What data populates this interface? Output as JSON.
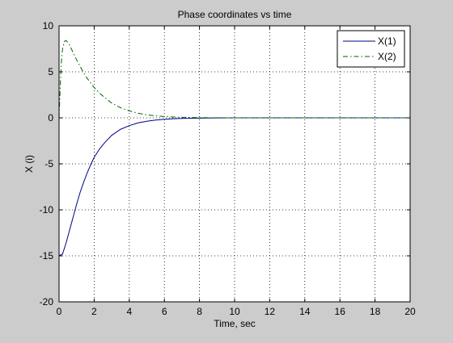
{
  "chart_data": {
    "type": "line",
    "title": "Phase coordinates vs time",
    "xlabel": "Time, sec",
    "ylabel": "X (i)",
    "xlim": [
      0,
      20
    ],
    "ylim": [
      -20,
      10
    ],
    "xticks": [
      0,
      2,
      4,
      6,
      8,
      10,
      12,
      14,
      16,
      18,
      20
    ],
    "yticks": [
      -20,
      -15,
      -10,
      -5,
      0,
      5,
      10
    ],
    "grid": true,
    "legend_position": "top-right",
    "series": [
      {
        "name": "X(1)",
        "color": "#00008b",
        "style": "solid",
        "x": [
          0,
          0.2,
          0.4,
          0.6,
          0.8,
          1.0,
          1.2,
          1.4,
          1.6,
          1.8,
          2.0,
          2.3,
          2.6,
          3.0,
          3.5,
          4.0,
          4.5,
          5.0,
          5.5,
          6.0,
          6.5,
          7.0,
          7.5,
          8.0,
          9.0,
          10.0,
          12.0,
          14.0,
          16.0,
          18.0,
          20.0
        ],
        "y": [
          -15.0,
          -14.8,
          -13.6,
          -12.2,
          -10.8,
          -9.4,
          -8.1,
          -7.0,
          -6.0,
          -5.1,
          -4.3,
          -3.4,
          -2.7,
          -1.9,
          -1.25,
          -0.85,
          -0.55,
          -0.37,
          -0.24,
          -0.16,
          -0.1,
          -0.07,
          -0.04,
          -0.03,
          -0.01,
          0,
          0,
          0,
          0,
          0,
          0
        ]
      },
      {
        "name": "X(2)",
        "color": "#006400",
        "style": "dashdot",
        "x": [
          0,
          0.05,
          0.1,
          0.15,
          0.2,
          0.3,
          0.4,
          0.5,
          0.6,
          0.7,
          0.8,
          1.0,
          1.2,
          1.4,
          1.6,
          1.8,
          2.0,
          2.3,
          2.6,
          3.0,
          3.5,
          4.0,
          4.5,
          5.0,
          5.5,
          6.0,
          6.5,
          7.0,
          8.0,
          9.0,
          10.0,
          12.0,
          14.0,
          16.0,
          18.0,
          20.0
        ],
        "y": [
          0,
          2.5,
          4.8,
          6.5,
          7.5,
          8.3,
          8.4,
          8.2,
          7.9,
          7.5,
          7.1,
          6.3,
          5.6,
          4.9,
          4.3,
          3.8,
          3.3,
          2.7,
          2.2,
          1.6,
          1.1,
          0.75,
          0.5,
          0.33,
          0.22,
          0.14,
          0.09,
          0.06,
          0.02,
          0.01,
          0,
          0,
          0,
          0,
          0,
          0
        ]
      }
    ]
  }
}
